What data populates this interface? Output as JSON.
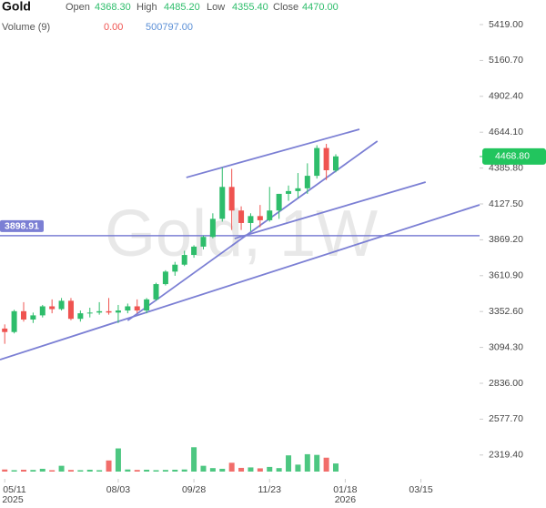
{
  "chart_data": {
    "type": "candlestick",
    "title": "Gold",
    "watermark": "Gold, 1W",
    "legend": {
      "labels": [
        "Open",
        "High",
        "Low",
        "Close"
      ],
      "values": [
        4368.3,
        4485.2,
        4355.4,
        4470
      ],
      "value_labels": [
        "4368.30",
        "4485.20",
        "4355.40",
        "4470.00"
      ]
    },
    "volume_legend": {
      "label": "Volume (9)",
      "values": [
        0,
        500797
      ],
      "value_labels": [
        "0.00",
        "500797.00"
      ],
      "colors": [
        "#ef5350",
        "#5b8fd6"
      ]
    },
    "up_color": "#2ebd6b",
    "down_color": "#ef5350",
    "x": [
      1,
      2,
      3,
      4,
      5,
      6,
      7,
      8,
      9,
      10,
      11,
      12,
      13,
      14,
      15,
      16,
      17,
      18,
      19,
      20,
      21,
      22,
      23,
      24,
      25,
      26,
      27,
      28,
      29,
      30,
      31,
      32,
      33,
      34,
      35,
      36
    ],
    "open": [
      3230,
      3205,
      3355,
      3295,
      3325,
      3390,
      3370,
      3430,
      3300,
      3340,
      3345,
      3355,
      3345,
      3360,
      3390,
      3360,
      3440,
      3550,
      3640,
      3690,
      3760,
      3820,
      3890,
      4020,
      4250,
      4080,
      3990,
      4040,
      4010,
      4080,
      4200,
      4220,
      4240,
      4330,
      4530,
      4368.3
    ],
    "high": [
      3260,
      3365,
      3420,
      3345,
      3400,
      3440,
      3450,
      3450,
      3360,
      3380,
      3420,
      3450,
      3400,
      3410,
      3440,
      3450,
      3560,
      3650,
      3710,
      3790,
      3830,
      3900,
      4060,
      4390,
      4380,
      4110,
      4060,
      4120,
      4250,
      4200,
      4260,
      4350,
      4420,
      4550,
      4560,
      4485.2
    ],
    "low": [
      3120,
      3195,
      3280,
      3270,
      3310,
      3340,
      3360,
      3290,
      3280,
      3310,
      3330,
      3330,
      3270,
      3340,
      3340,
      3340,
      3430,
      3540,
      3610,
      3680,
      3740,
      3800,
      3880,
      4000,
      3940,
      3940,
      3930,
      3960,
      4000,
      4020,
      4150,
      4170,
      4200,
      4310,
      4300,
      4355.4
    ],
    "close": [
      3205,
      3355,
      3295,
      3325,
      3390,
      3370,
      3430,
      3300,
      3340,
      3345,
      3355,
      3345,
      3360,
      3390,
      3360,
      3440,
      3550,
      3640,
      3690,
      3760,
      3820,
      3890,
      4020,
      4250,
      4080,
      3990,
      4040,
      4010,
      4080,
      4200,
      4220,
      4240,
      4330,
      4530,
      4370,
      4470
    ],
    "volume": [
      90000,
      60000,
      80000,
      70000,
      120000,
      60000,
      250000,
      70000,
      60000,
      80000,
      60000,
      480000,
      1000000,
      90000,
      70000,
      80000,
      60000,
      70000,
      80000,
      90000,
      1050000,
      250000,
      150000,
      120000,
      380000,
      160000,
      180000,
      140000,
      200000,
      150000,
      700000,
      300000,
      750000,
      720000,
      600000,
      350000
    ],
    "xlim": [
      0.5,
      51.2
    ],
    "xticks": [
      {
        "value": 1,
        "label": "05/11"
      },
      {
        "value": 13,
        "label": "08/03"
      },
      {
        "value": 21,
        "label": "09/28"
      },
      {
        "value": 29,
        "label": "11/23"
      },
      {
        "value": 37,
        "label": "01/18"
      },
      {
        "value": 45,
        "label": "03/15"
      }
    ],
    "year_labels": [
      {
        "value": 1,
        "label": "2025"
      },
      {
        "value": 37,
        "label": "2026"
      }
    ],
    "ylim": [
      2200,
      5596
    ],
    "yticks": [
      {
        "value": 5419,
        "label": "5419.00"
      },
      {
        "value": 5160.7,
        "label": "5160.70"
      },
      {
        "value": 4902.4,
        "label": "4902.40"
      },
      {
        "value": 4644.1,
        "label": "4644.10"
      },
      {
        "value": 4385.8,
        "label": "4385.80"
      },
      {
        "value": 4127.5,
        "label": "4127.50"
      },
      {
        "value": 3869.2,
        "label": "3869.20"
      },
      {
        "value": 3610.9,
        "label": "3610.90"
      },
      {
        "value": 3352.6,
        "label": "3352.60"
      },
      {
        "value": 3094.3,
        "label": "3094.30"
      },
      {
        "value": 2836,
        "label": "2836.00"
      },
      {
        "value": 2577.7,
        "label": "2577.70"
      },
      {
        "value": 2319.4,
        "label": "2319.40"
      }
    ],
    "vlim": [
      0,
      1100000
    ],
    "price_line": {
      "value": 3898.91,
      "label": "3898.91",
      "color": "#7b7fd4"
    },
    "last_price": {
      "value": 4468.8,
      "label": "4468.80",
      "color": "#22c55e"
    },
    "trend_color": "#7b7fd4",
    "trend_lines": [
      {
        "x": [
          20.2,
          38.5
        ],
        "y": [
          4318,
          4665
        ]
      },
      {
        "x": [
          14.0,
          40.4
        ],
        "y": [
          3288,
          4580
        ]
      },
      {
        "x": [
          25.3,
          45.5
        ],
        "y": [
          3878,
          4285
        ]
      },
      {
        "x": [
          0.5,
          51.2
        ],
        "y": [
          3006,
          4121
        ]
      }
    ]
  }
}
